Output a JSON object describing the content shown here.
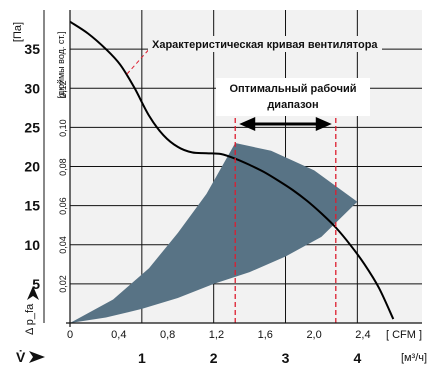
{
  "chart_data": {
    "type": "line",
    "background": "#f2f2f2",
    "grid": true,
    "fan_curve": {
      "name": "Характеристическая кривая вентилятора",
      "x_m3h": [
        0,
        0.25,
        0.5,
        0.7,
        0.9,
        1.1,
        1.3,
        1.5,
        1.7,
        1.9,
        2.1,
        2.3,
        2.5,
        2.7,
        2.9,
        3.1,
        3.3,
        3.5,
        3.7,
        3.9,
        4.1,
        4.3,
        4.5
      ],
      "pressure_pa": [
        38.5,
        37.0,
        35.0,
        33.0,
        30.0,
        26.5,
        24.0,
        22.5,
        21.8,
        21.7,
        21.6,
        21.0,
        20.2,
        19.3,
        18.2,
        17.0,
        15.6,
        14.0,
        12.2,
        10.0,
        7.5,
        4.5,
        0.5
      ],
      "color": "#000000"
    },
    "operating_band": {
      "upper_x_m3h": [
        0,
        0.6,
        1.1,
        1.5,
        1.9,
        2.3,
        2.8,
        3.4,
        4.0
      ],
      "upper_pa": [
        0,
        3.0,
        7.0,
        11.5,
        16.5,
        23.0,
        22.0,
        19.5,
        15.5
      ],
      "lower_x_m3h": [
        4.0,
        3.5,
        3.0,
        2.5,
        2.0,
        1.5,
        1.0,
        0.5,
        0
      ],
      "lower_pa": [
        15.5,
        11.0,
        8.5,
        6.5,
        5.0,
        3.2,
        1.8,
        0.7,
        0
      ],
      "color": "#587385"
    },
    "optimal_range": {
      "label_line1": "Оптимальный рабочий",
      "label_line2": "диапазон",
      "x_from_m3h": 2.3,
      "x_to_m3h": 3.7,
      "dash_color": "#dd1e2f"
    },
    "y_axis_pa": {
      "unit": "[Па]",
      "ticks": [
        5,
        10,
        15,
        20,
        25,
        30,
        35
      ],
      "range": [
        0,
        40
      ],
      "label": "Δ p_fa"
    },
    "y_axis_inch": {
      "unit": "[дюймы вод. ст.]",
      "ticks": [
        "0,02",
        "0,04",
        "0,06",
        "0,08",
        "0,10",
        "0,12"
      ],
      "values": [
        0.02,
        0.04,
        0.06,
        0.08,
        0.1,
        0.12
      ]
    },
    "x_axis_cfm": {
      "unit": "[ CFM ]",
      "ticks": [
        "0",
        "0,4",
        "0,8",
        "1,2",
        "1,6",
        "2,0",
        "2,4"
      ],
      "values": [
        0,
        0.4,
        0.8,
        1.2,
        1.6,
        2.0,
        2.4
      ]
    },
    "x_axis_m3h": {
      "unit": "[м³/ч]",
      "ticks": [
        1,
        2,
        3,
        4
      ],
      "range": [
        0,
        4.9
      ],
      "label": "V̇"
    }
  }
}
